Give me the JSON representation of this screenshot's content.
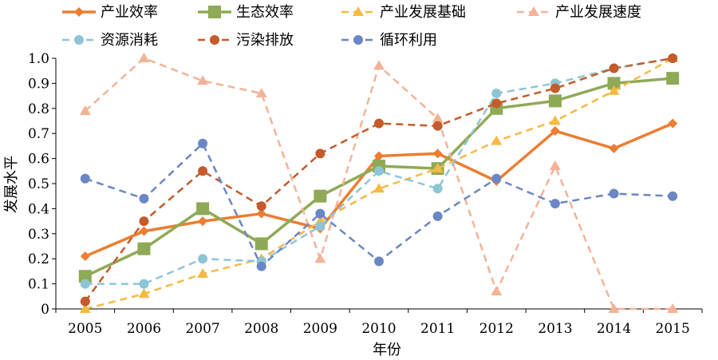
{
  "chart_data": {
    "type": "line",
    "title": "",
    "xlabel": "年份",
    "ylabel": "发展水平",
    "categories": [
      "2005",
      "2006",
      "2007",
      "2008",
      "2009",
      "2010",
      "2011",
      "2012",
      "2013",
      "2014",
      "2015"
    ],
    "ylim": [
      0,
      1.0
    ],
    "yticks": [
      "0",
      "0.1",
      "0.2",
      "0.3",
      "0.4",
      "0.5",
      "0.6",
      "0.7",
      "0.8",
      "0.9",
      "1.0"
    ],
    "grid": false,
    "legend_position": "top",
    "series": [
      {
        "name": "产业效率",
        "color": "#ED7D31",
        "dash": "solid",
        "marker": "diamond",
        "values": [
          0.21,
          0.31,
          0.35,
          0.38,
          0.32,
          0.61,
          0.62,
          0.51,
          0.71,
          0.64,
          0.74
        ]
      },
      {
        "name": "生态效率",
        "color": "#8FAA56",
        "dash": "solid",
        "marker": "square",
        "values": [
          0.13,
          0.24,
          0.4,
          0.26,
          0.45,
          0.57,
          0.56,
          0.8,
          0.83,
          0.9,
          0.92
        ]
      },
      {
        "name": "产业发展基础",
        "color": "#F5BA45",
        "dash": "dashed",
        "marker": "triangle",
        "values": [
          0.0,
          0.06,
          0.14,
          0.2,
          0.35,
          0.48,
          0.56,
          0.67,
          0.75,
          0.87,
          1.0
        ]
      },
      {
        "name": "产业发展速度",
        "color": "#F4B397",
        "dash": "dashed",
        "marker": "triangle",
        "values": [
          0.79,
          1.0,
          0.91,
          0.86,
          0.2,
          0.97,
          0.76,
          0.07,
          0.57,
          0.0,
          0.0
        ]
      },
      {
        "name": "资源消耗",
        "color": "#8EC5D4",
        "dash": "dashed",
        "marker": "circle",
        "values": [
          0.1,
          0.1,
          0.2,
          0.19,
          0.33,
          0.55,
          0.48,
          0.86,
          0.9,
          0.96,
          1.0
        ]
      },
      {
        "name": "污染排放",
        "color": "#C55A2B",
        "dash": "dashed",
        "marker": "circle",
        "values": [
          0.03,
          0.35,
          0.55,
          0.41,
          0.62,
          0.74,
          0.73,
          0.82,
          0.88,
          0.96,
          1.0
        ]
      },
      {
        "name": "循环利用",
        "color": "#6B86C5",
        "dash": "dashed",
        "marker": "circle",
        "values": [
          0.52,
          0.44,
          0.66,
          0.17,
          0.38,
          0.19,
          0.37,
          0.52,
          0.42,
          0.46,
          0.45
        ]
      }
    ]
  }
}
